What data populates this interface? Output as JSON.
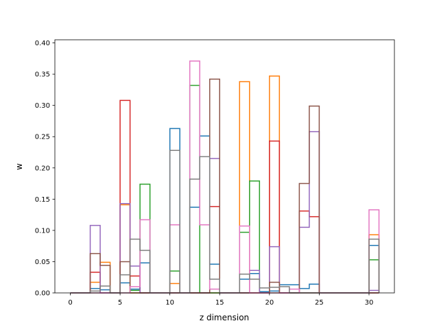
{
  "chart_data": {
    "type": "step-histogram",
    "xlabel": "z dimension",
    "ylabel": "w",
    "xlim": [
      -1.55,
      32.55
    ],
    "ylim": [
      0,
      0.405
    ],
    "x_ticks": [
      0,
      5,
      10,
      15,
      20,
      25,
      30
    ],
    "y_ticks": [
      0.0,
      0.05,
      0.1,
      0.15,
      0.2,
      0.25,
      0.3,
      0.35,
      0.4
    ],
    "y_tick_labels": [
      "0.00",
      "0.05",
      "0.10",
      "0.15",
      "0.20",
      "0.25",
      "0.30",
      "0.35",
      "0.40"
    ],
    "bins": [
      0,
      1,
      2,
      3,
      4,
      5,
      6,
      7,
      8,
      9,
      10,
      11,
      12,
      13,
      14,
      15,
      16,
      17,
      18,
      19,
      20,
      21,
      22,
      23,
      24,
      25,
      26,
      27,
      28,
      29,
      30,
      31
    ],
    "series": [
      {
        "color": "#1f77b4",
        "values": [
          0,
          0,
          0.007,
          0.005,
          0,
          0.016,
          0.006,
          0.048,
          0,
          0,
          0.263,
          0,
          0.137,
          0.251,
          0.046,
          0,
          0,
          0.022,
          0.031,
          0.002,
          0.003,
          0.013,
          0.013,
          0.007,
          0.014,
          0,
          0,
          0,
          0,
          0,
          0.076
        ]
      },
      {
        "color": "#ff7f0e",
        "values": [
          0,
          0,
          0.017,
          0.049,
          0,
          0.141,
          0,
          0,
          0,
          0,
          0.015,
          0,
          0,
          0,
          0,
          0,
          0,
          0.338,
          0,
          0,
          0.347,
          0,
          0,
          0,
          0,
          0,
          0,
          0,
          0,
          0,
          0.093
        ]
      },
      {
        "color": "#2ca02c",
        "values": [
          0,
          0,
          0,
          0,
          0,
          0,
          0.004,
          0.174,
          0,
          0,
          0.035,
          0,
          0.332,
          0,
          0,
          0,
          0,
          0.097,
          0.179,
          0,
          0,
          0,
          0,
          0,
          0,
          0,
          0,
          0,
          0,
          0,
          0.053
        ]
      },
      {
        "color": "#d62728",
        "values": [
          0,
          0,
          0.033,
          0,
          0,
          0.308,
          0.027,
          0,
          0,
          0,
          0,
          0,
          0,
          0,
          0.138,
          0,
          0,
          0,
          0,
          0,
          0.243,
          0,
          0,
          0.131,
          0.122,
          0,
          0,
          0,
          0,
          0,
          0
        ]
      },
      {
        "color": "#9467bd",
        "values": [
          0,
          0,
          0.108,
          0,
          0,
          0.143,
          0.043,
          0,
          0,
          0,
          0,
          0,
          0,
          0,
          0.215,
          0,
          0,
          0,
          0.036,
          0,
          0.074,
          0,
          0,
          0.105,
          0.258,
          0,
          0,
          0,
          0,
          0,
          0.004
        ]
      },
      {
        "color": "#8c564b",
        "values": [
          0,
          0,
          0.063,
          0.044,
          0,
          0.05,
          0,
          0,
          0,
          0,
          0,
          0,
          0,
          0,
          0.342,
          0,
          0,
          0,
          0,
          0,
          0.017,
          0,
          0,
          0.175,
          0.299,
          0,
          0,
          0,
          0,
          0,
          0
        ]
      },
      {
        "color": "#e377c2",
        "values": [
          0,
          0,
          0,
          0,
          0,
          0,
          0.01,
          0.117,
          0,
          0,
          0.109,
          0,
          0.371,
          0.109,
          0.006,
          0,
          0,
          0.107,
          0,
          0,
          0,
          0,
          0.006,
          0,
          0,
          0,
          0,
          0,
          0,
          0,
          0.133
        ]
      },
      {
        "color": "#7f7f7f",
        "values": [
          0,
          0,
          0.003,
          0.011,
          0,
          0.029,
          0.086,
          0.068,
          0,
          0,
          0.228,
          0,
          0.182,
          0.218,
          0.022,
          0,
          0,
          0.03,
          0.022,
          0.008,
          0.009,
          0.01,
          0,
          0,
          0,
          0,
          0,
          0,
          0,
          0,
          0.086
        ]
      }
    ]
  }
}
